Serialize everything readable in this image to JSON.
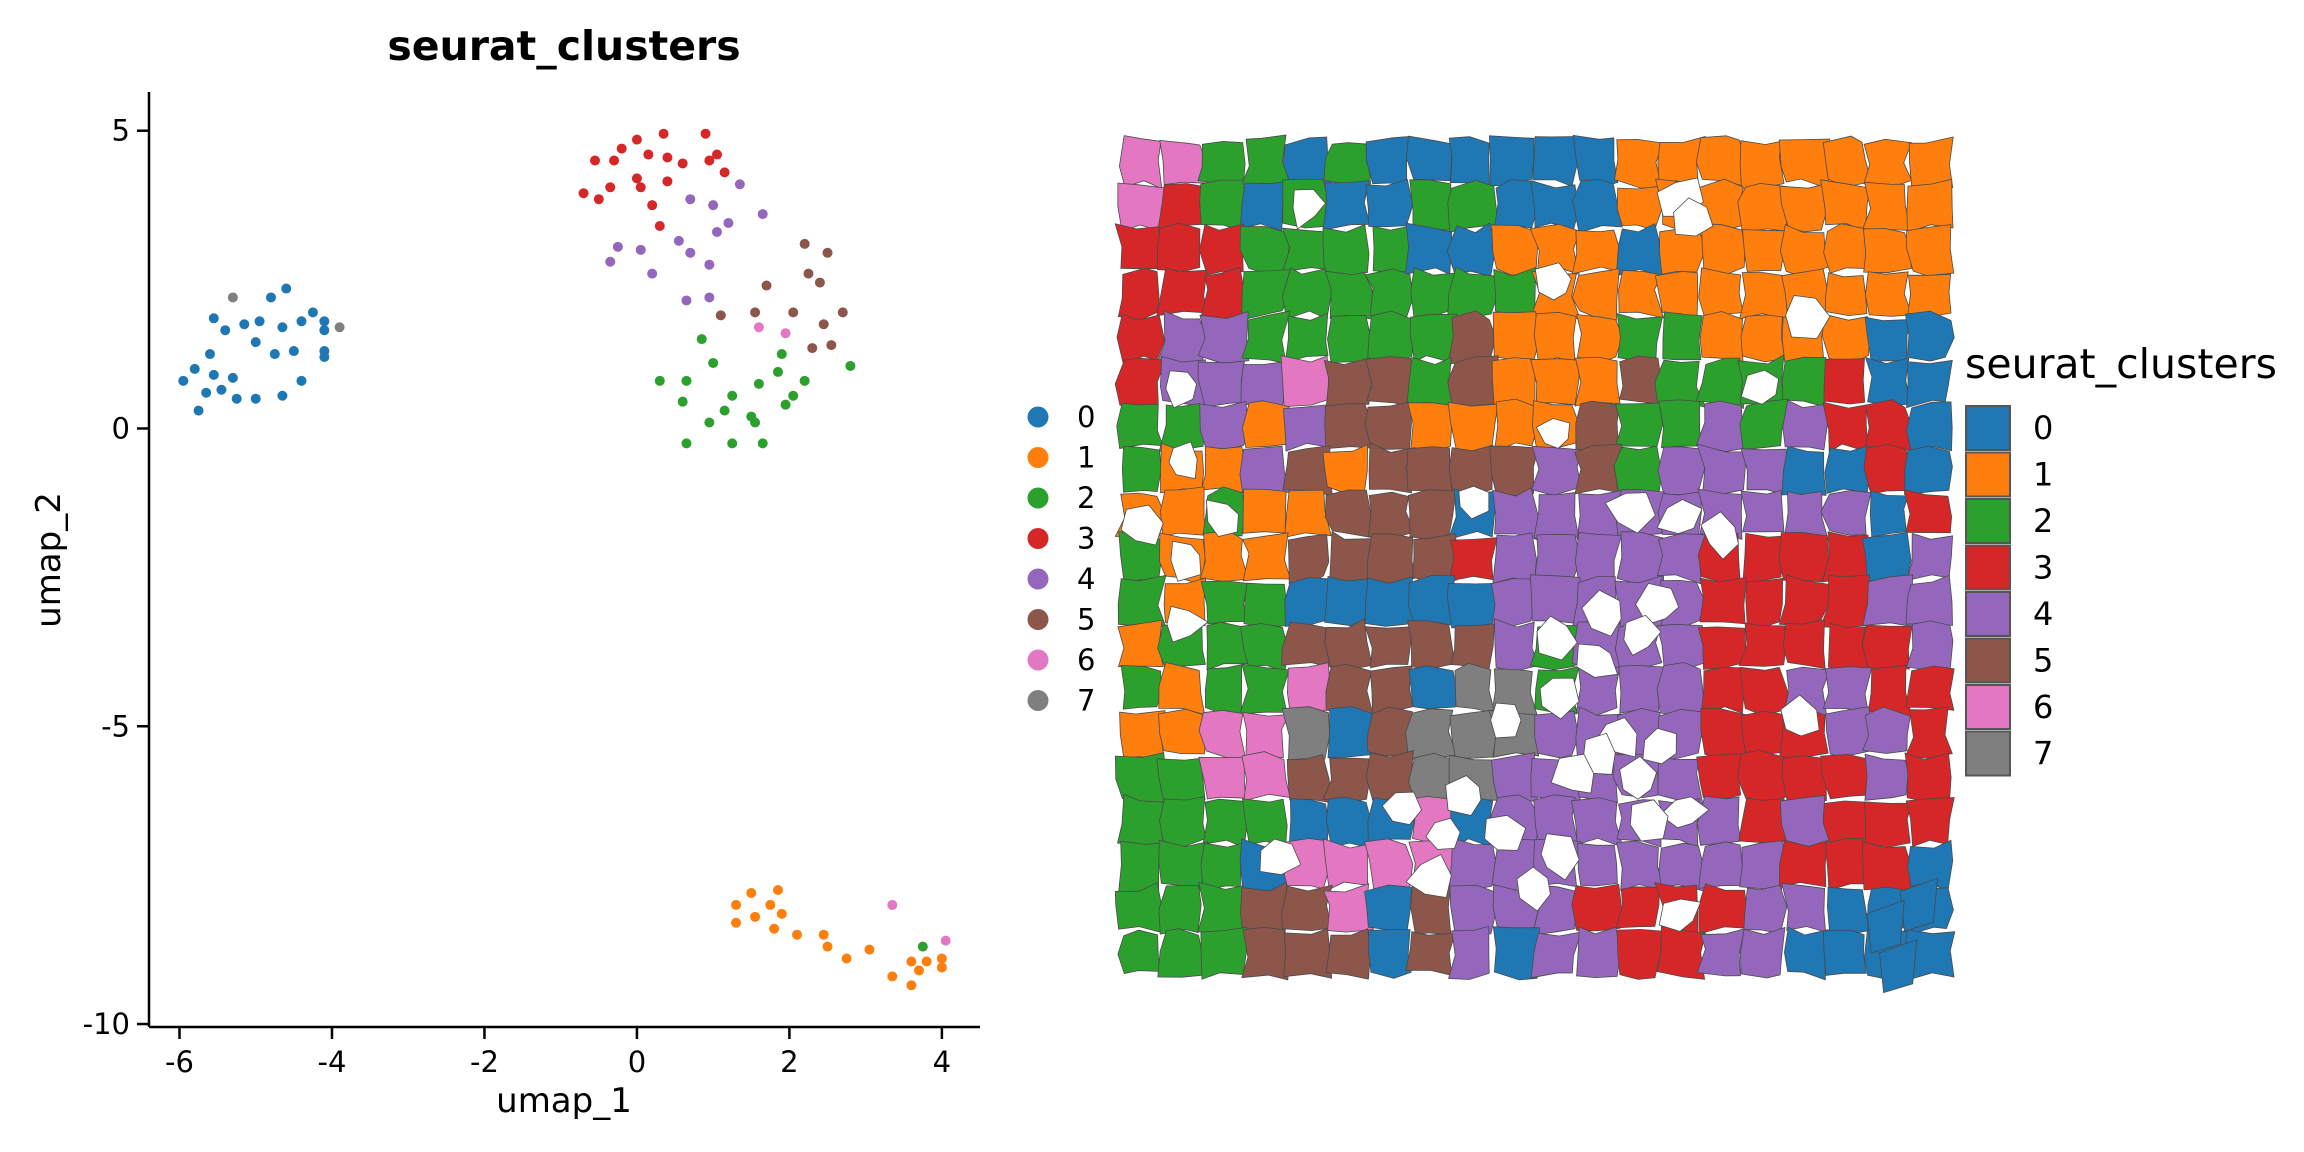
{
  "chart_data": [
    {
      "type": "scatter",
      "title": "seurat_clusters",
      "xlabel": "umap_1",
      "ylabel": "umap_2",
      "xlim": [
        -6.4,
        4.5
      ],
      "ylim": [
        -10.05,
        5.65
      ],
      "xticks": [
        -6,
        -4,
        -2,
        0,
        2,
        4
      ],
      "xtick_labels": [
        "-6",
        "-4",
        "-2",
        "0",
        "2",
        "4"
      ],
      "yticks": [
        5,
        0,
        -5,
        -10
      ],
      "ytick_labels": [
        "5",
        "0",
        "-5",
        "-10"
      ],
      "grid": false,
      "legend_position": "right",
      "legend_entries": [
        "0",
        "1",
        "2",
        "3",
        "4",
        "5",
        "6",
        "7"
      ],
      "colors": [
        "#1f77b4",
        "#ff7f0e",
        "#2ca02c",
        "#d62728",
        "#9467bd",
        "#8c564b",
        "#e377c2",
        "#7f7f7f"
      ],
      "points": [
        [
          -5.3,
          2.2,
          7
        ],
        [
          -4.8,
          2.2,
          0
        ],
        [
          -4.6,
          2.35,
          0
        ],
        [
          -5.55,
          1.85,
          0
        ],
        [
          -5.15,
          1.75,
          0
        ],
        [
          -4.95,
          1.8,
          0
        ],
        [
          -4.65,
          1.7,
          0
        ],
        [
          -4.4,
          1.8,
          0
        ],
        [
          -4.25,
          1.95,
          0
        ],
        [
          -4.1,
          1.8,
          0
        ],
        [
          -4.1,
          1.65,
          0
        ],
        [
          -3.9,
          1.7,
          7
        ],
        [
          -5.4,
          1.65,
          0
        ],
        [
          -5.0,
          1.45,
          0
        ],
        [
          -4.75,
          1.25,
          0
        ],
        [
          -4.5,
          1.3,
          0
        ],
        [
          -4.1,
          1.3,
          0
        ],
        [
          -4.1,
          1.2,
          0
        ],
        [
          -5.6,
          1.25,
          0
        ],
        [
          -5.8,
          1.0,
          0
        ],
        [
          -5.55,
          0.9,
          0
        ],
        [
          -5.95,
          0.8,
          0
        ],
        [
          -5.3,
          0.85,
          0
        ],
        [
          -5.45,
          0.65,
          0
        ],
        [
          -5.65,
          0.6,
          0
        ],
        [
          -5.75,
          0.3,
          0
        ],
        [
          -5.0,
          0.5,
          0
        ],
        [
          -4.65,
          0.55,
          0
        ],
        [
          -4.4,
          0.8,
          0
        ],
        [
          -5.25,
          0.5,
          0
        ],
        [
          0.0,
          4.85,
          3
        ],
        [
          0.35,
          4.95,
          3
        ],
        [
          0.9,
          4.95,
          3
        ],
        [
          0.15,
          4.6,
          3
        ],
        [
          -0.2,
          4.7,
          3
        ],
        [
          -0.55,
          4.5,
          3
        ],
        [
          -0.3,
          4.5,
          3
        ],
        [
          0.4,
          4.55,
          3
        ],
        [
          0.6,
          4.45,
          3
        ],
        [
          1.05,
          4.6,
          3
        ],
        [
          0.95,
          4.5,
          3
        ],
        [
          1.15,
          4.3,
          3
        ],
        [
          0.0,
          4.2,
          3
        ],
        [
          0.05,
          4.05,
          3
        ],
        [
          0.4,
          4.15,
          3
        ],
        [
          -0.7,
          3.95,
          3
        ],
        [
          -0.35,
          4.05,
          3
        ],
        [
          -0.5,
          3.85,
          3
        ],
        [
          0.2,
          3.75,
          3
        ],
        [
          0.3,
          3.4,
          3
        ],
        [
          1.35,
          4.1,
          4
        ],
        [
          0.7,
          3.85,
          4
        ],
        [
          1.0,
          3.75,
          4
        ],
        [
          1.65,
          3.6,
          4
        ],
        [
          1.2,
          3.45,
          4
        ],
        [
          1.05,
          3.3,
          4
        ],
        [
          0.55,
          3.15,
          4
        ],
        [
          -0.25,
          3.05,
          4
        ],
        [
          0.05,
          3.0,
          4
        ],
        [
          0.7,
          2.95,
          4
        ],
        [
          -0.35,
          2.8,
          4
        ],
        [
          0.2,
          2.6,
          4
        ],
        [
          0.95,
          2.75,
          4
        ],
        [
          0.65,
          2.15,
          4
        ],
        [
          0.95,
          2.2,
          4
        ],
        [
          2.2,
          3.1,
          5
        ],
        [
          2.5,
          2.95,
          5
        ],
        [
          2.25,
          2.6,
          5
        ],
        [
          2.4,
          2.45,
          5
        ],
        [
          1.7,
          2.4,
          5
        ],
        [
          1.55,
          1.95,
          5
        ],
        [
          2.05,
          1.95,
          5
        ],
        [
          2.7,
          1.95,
          5
        ],
        [
          2.45,
          1.75,
          5
        ],
        [
          1.1,
          1.9,
          5
        ],
        [
          2.55,
          1.4,
          5
        ],
        [
          2.3,
          1.35,
          5
        ],
        [
          1.6,
          1.7,
          6
        ],
        [
          1.95,
          1.6,
          6
        ],
        [
          0.85,
          1.5,
          2
        ],
        [
          1.0,
          1.1,
          2
        ],
        [
          1.9,
          1.25,
          2
        ],
        [
          2.8,
          1.05,
          2
        ],
        [
          1.85,
          0.95,
          2
        ],
        [
          0.3,
          0.8,
          2
        ],
        [
          0.65,
          0.8,
          2
        ],
        [
          2.2,
          0.8,
          2
        ],
        [
          1.6,
          0.75,
          2
        ],
        [
          1.25,
          0.55,
          2
        ],
        [
          2.05,
          0.55,
          2
        ],
        [
          0.6,
          0.45,
          2
        ],
        [
          1.15,
          0.3,
          2
        ],
        [
          1.95,
          0.4,
          2
        ],
        [
          1.5,
          0.2,
          2
        ],
        [
          0.95,
          0.1,
          2
        ],
        [
          1.55,
          0.1,
          2
        ],
        [
          0.65,
          -0.25,
          2
        ],
        [
          1.25,
          -0.25,
          2
        ],
        [
          1.65,
          -0.25,
          2
        ],
        [
          1.5,
          -7.8,
          1
        ],
        [
          1.85,
          -7.75,
          1
        ],
        [
          1.3,
          -8.0,
          1
        ],
        [
          1.75,
          -8.0,
          1
        ],
        [
          1.9,
          -8.15,
          1
        ],
        [
          1.55,
          -8.2,
          1
        ],
        [
          1.3,
          -8.3,
          1
        ],
        [
          1.8,
          -8.4,
          1
        ],
        [
          2.1,
          -8.5,
          1
        ],
        [
          2.45,
          -8.5,
          1
        ],
        [
          2.5,
          -8.7,
          1
        ],
        [
          3.05,
          -8.75,
          1
        ],
        [
          2.75,
          -8.9,
          1
        ],
        [
          3.6,
          -8.95,
          1
        ],
        [
          3.8,
          -8.95,
          1
        ],
        [
          4.0,
          -8.9,
          1
        ],
        [
          4.0,
          -9.05,
          1
        ],
        [
          3.7,
          -9.1,
          1
        ],
        [
          3.35,
          -9.2,
          1
        ],
        [
          3.6,
          -9.35,
          1
        ],
        [
          3.35,
          -8.0,
          6
        ],
        [
          4.05,
          -8.6,
          6
        ],
        [
          3.75,
          -8.7,
          2
        ]
      ]
    },
    {
      "type": "heatmap",
      "legend_title": "seurat_clusters",
      "legend_position": "right",
      "legend_entries": [
        "0",
        "1",
        "2",
        "3",
        "4",
        "5",
        "6",
        "7"
      ],
      "colors": [
        "#1f77b4",
        "#ff7f0e",
        "#2ca02c",
        "#d62728",
        "#9467bd",
        "#8c564b",
        "#e377c2",
        "#7f7f7f"
      ],
      "cols": 20,
      "rows": 19,
      "grid_clusters": [
        "66220200000011111111",
        "63202002200011111111",
        "33322220011101111111",
        "33322222221111111111",
        "34422222511122111100",
        "34446552511152222300",
        "22414551111522424330",
        "21145155554524440030",
        "11211555044444444403",
        "21115555344444333304",
        "21220000044444333344",
        "12225555542444333334",
        "21226550772444334433",
        "11667057774444333443",
        "22665557744444333343",
        "22220006044444434333",
        "22206666444444443330",
        "22255605444333344000",
        "22255505404433440000"
      ],
      "holes": [
        [
          4.5,
          1.5
        ],
        [
          13.5,
          1.3
        ],
        [
          13.8,
          1.8
        ],
        [
          10.5,
          3.3
        ],
        [
          16.5,
          4.0
        ],
        [
          1.5,
          5.6
        ],
        [
          15.5,
          5.6
        ],
        [
          10.5,
          6.7
        ],
        [
          1.5,
          7.3
        ],
        [
          8.5,
          8.2
        ],
        [
          0.5,
          8.8
        ],
        [
          2.5,
          8.6
        ],
        [
          1.6,
          9.5
        ],
        [
          12.3,
          8.4
        ],
        [
          13.5,
          8.6
        ],
        [
          14.5,
          9.0
        ],
        [
          13.0,
          10.6
        ],
        [
          11.7,
          10.8
        ],
        [
          12.5,
          11.3
        ],
        [
          10.5,
          11.3
        ],
        [
          11.5,
          11.8
        ],
        [
          1.5,
          11.0
        ],
        [
          9.3,
          13.2
        ],
        [
          10.5,
          12.6
        ],
        [
          12.0,
          13.6
        ],
        [
          11.5,
          14.0
        ],
        [
          13.0,
          13.8
        ],
        [
          12.5,
          14.6
        ],
        [
          11.0,
          14.5
        ],
        [
          8.4,
          14.9
        ],
        [
          6.8,
          15.2
        ],
        [
          7.8,
          15.8
        ],
        [
          9.2,
          15.8
        ],
        [
          13.6,
          15.3
        ],
        [
          16.4,
          13.2
        ],
        [
          10.5,
          16.3
        ],
        [
          12.7,
          15.5
        ],
        [
          7.5,
          16.8
        ],
        [
          10.0,
          17.0
        ],
        [
          3.8,
          16.3
        ],
        [
          13.5,
          17.6
        ]
      ],
      "extras": [
        [
          18.8,
          17.1,
          0
        ],
        [
          18.0,
          17.6,
          0
        ],
        [
          18.3,
          18.5,
          0
        ]
      ]
    }
  ]
}
